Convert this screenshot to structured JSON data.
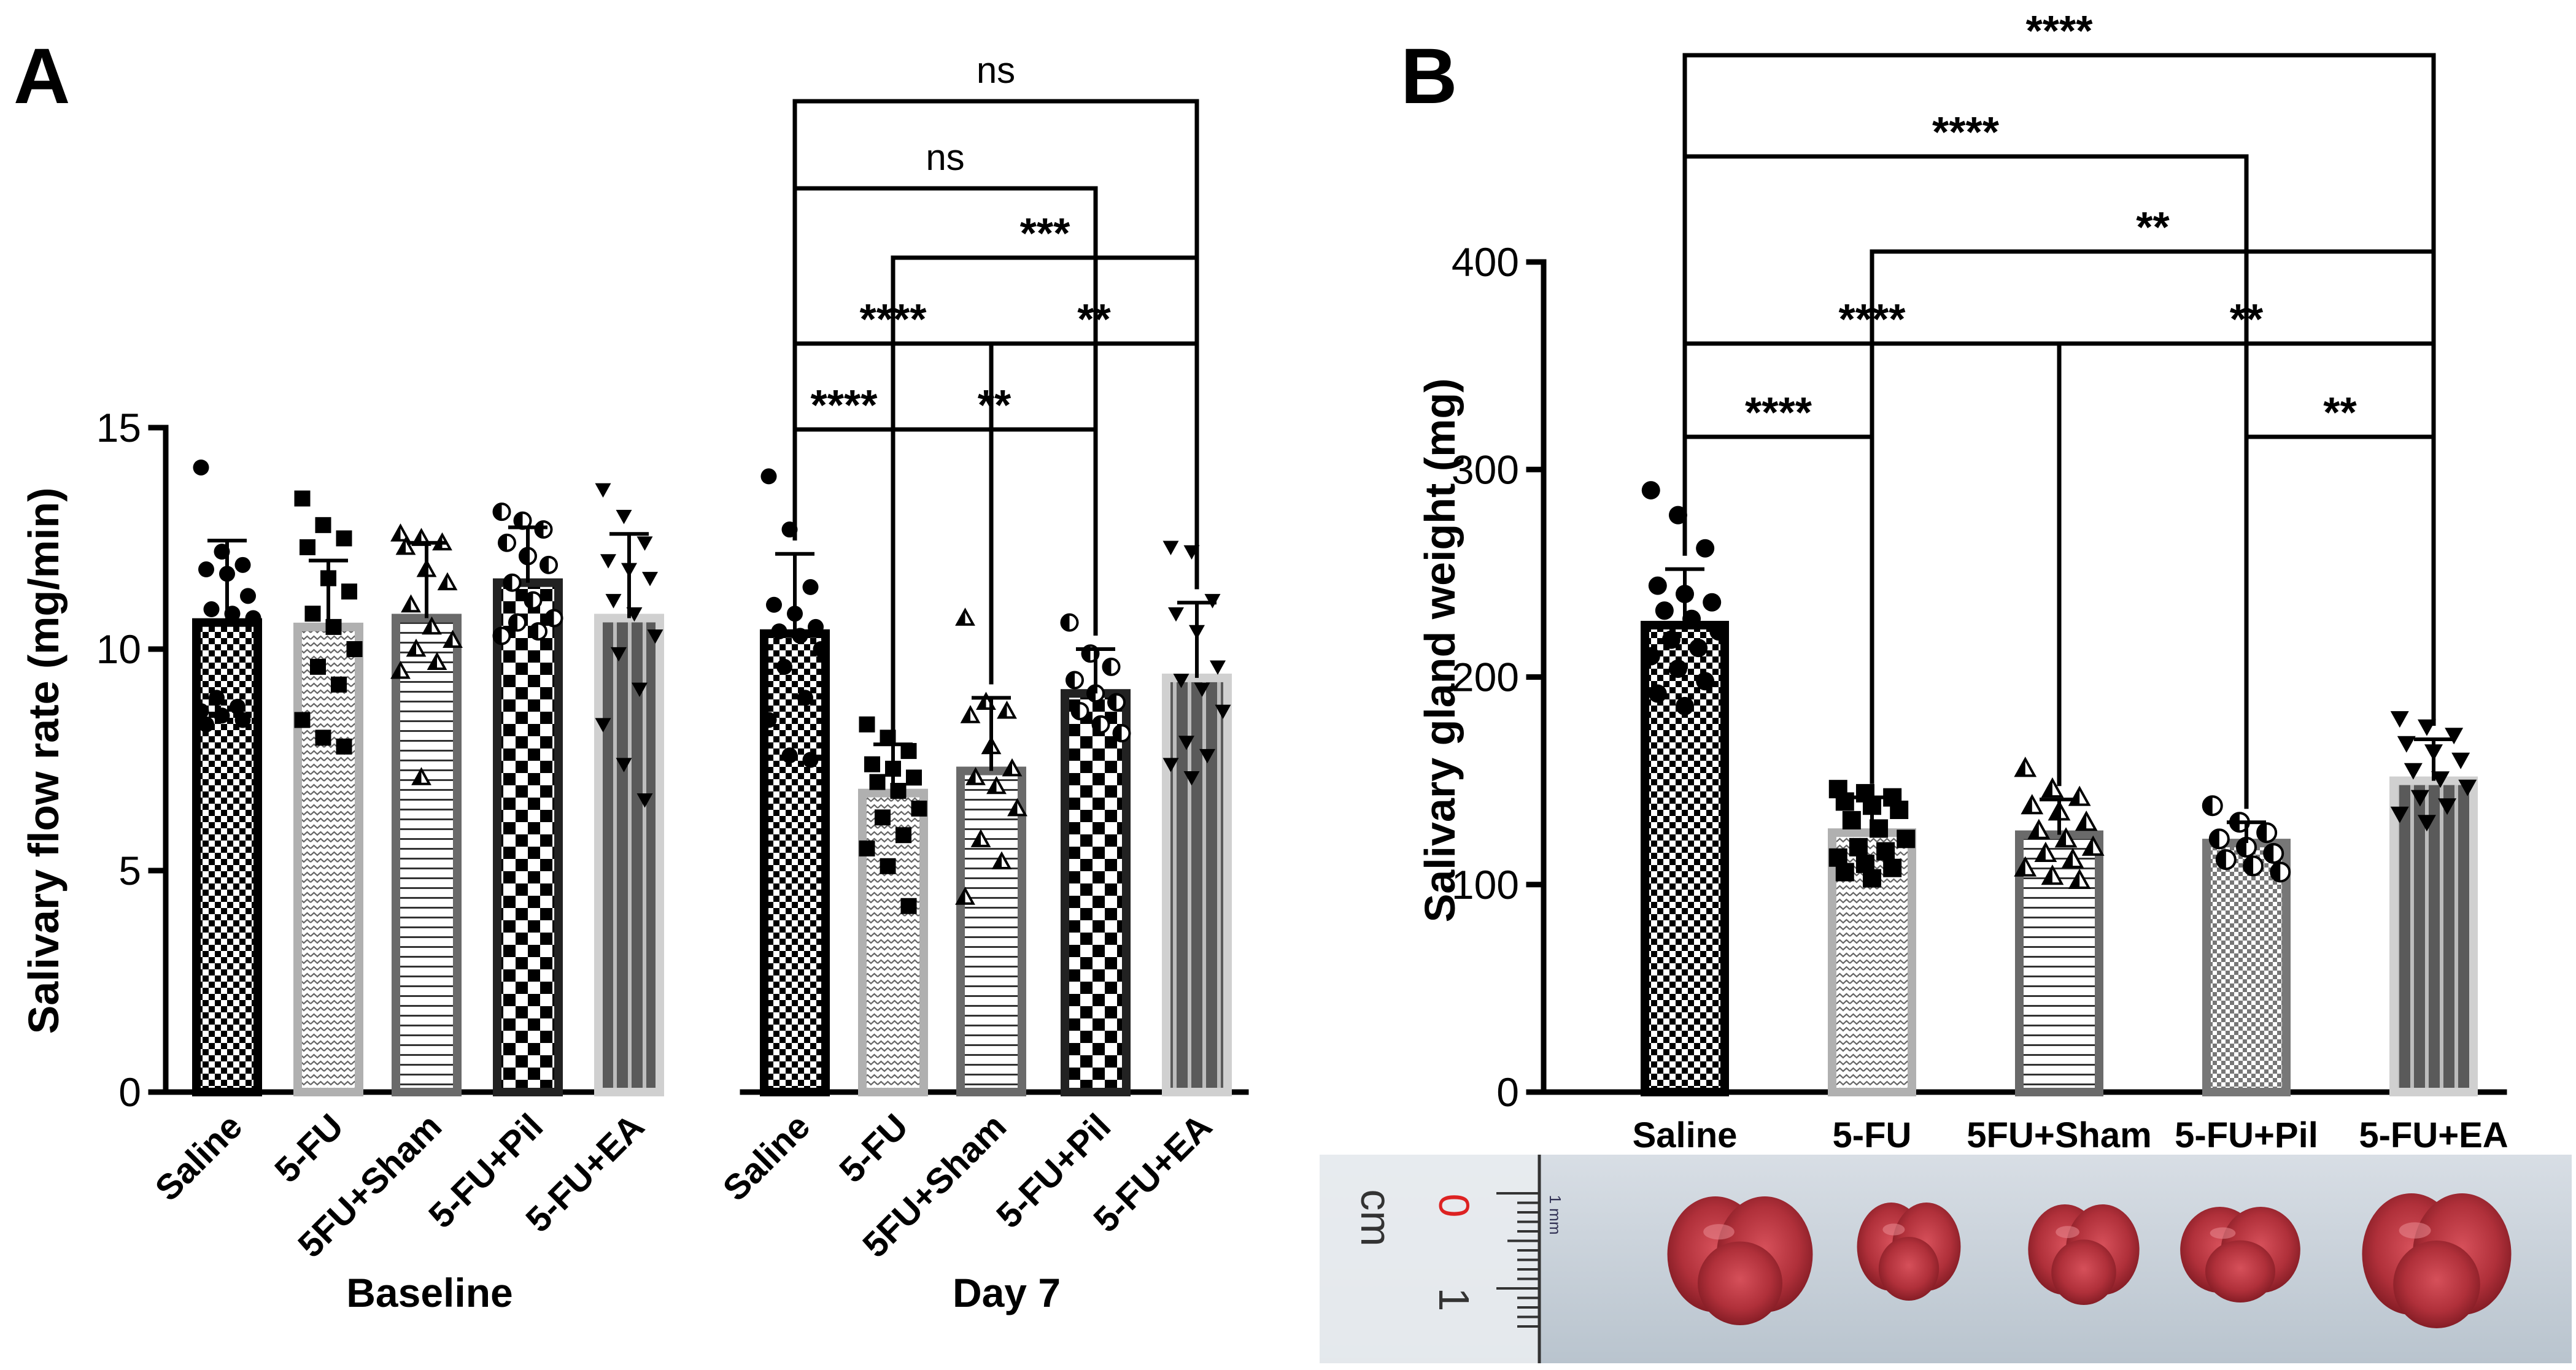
{
  "chart_data": [
    {
      "type": "bar",
      "panel": "A",
      "ylabel": "Salivary flow rate (mg/min)",
      "ylim": [
        0,
        15
      ],
      "yticks": [
        "0",
        "5",
        "10",
        "15"
      ],
      "groups": [
        {
          "name": "Baseline",
          "bars": [
            {
              "label": "Saline",
              "mean": 10.6,
              "sd": 1.85,
              "pattern": "checker",
              "marker": "circle",
              "points": [
                14.1,
                12.2,
                11.9,
                11.8,
                11.7,
                11.2,
                10.9,
                10.8,
                10.7,
                8.9,
                8.7,
                8.6,
                8.5,
                8.4,
                8.3
              ]
            },
            {
              "label": "5-FU",
              "mean": 10.5,
              "sd": 1.5,
              "pattern": "zigzag",
              "marker": "square",
              "points": [
                13.4,
                12.8,
                12.5,
                12.3,
                11.6,
                11.3,
                10.8,
                10.5,
                10.0,
                9.6,
                9.2,
                8.4,
                8.0,
                7.8
              ]
            },
            {
              "label": "5FU+Sham",
              "mean": 10.7,
              "sd": 1.7,
              "pattern": "hlines",
              "marker": "triangle",
              "points": [
                12.6,
                12.5,
                12.4,
                12.3,
                11.8,
                11.5,
                11.0,
                10.5,
                10.2,
                10.0,
                9.7,
                9.5,
                7.1
              ]
            },
            {
              "label": "5-FU+Pil",
              "mean": 11.5,
              "sd": 1.25,
              "pattern": "bigchecker",
              "marker": "halfcircle",
              "points": [
                13.1,
                12.9,
                12.7,
                12.4,
                12.1,
                11.9,
                11.5,
                11.1,
                10.7,
                10.6,
                10.4,
                10.3
              ]
            },
            {
              "label": "5-FU+EA",
              "mean": 10.7,
              "sd": 1.9,
              "pattern": "vlines",
              "marker": "invtriangle",
              "points": [
                13.6,
                13.0,
                12.4,
                12.0,
                11.8,
                11.6,
                11.1,
                10.8,
                10.3,
                9.9,
                9.1,
                8.3,
                7.4,
                6.6
              ]
            }
          ]
        },
        {
          "name": "Day 7",
          "bars": [
            {
              "label": "Saline",
              "mean": 10.35,
              "sd": 1.8,
              "pattern": "checker",
              "marker": "circle",
              "points": [
                13.9,
                12.7,
                11.4,
                11.0,
                10.8,
                10.5,
                10.4,
                10.3,
                10.0,
                9.6,
                8.9,
                8.4,
                7.6,
                7.5
              ]
            },
            {
              "label": "5-FU",
              "mean": 6.75,
              "sd": 1.1,
              "pattern": "zigzag",
              "marker": "square",
              "points": [
                8.3,
                8.0,
                7.7,
                7.4,
                7.3,
                7.1,
                7.0,
                6.8,
                6.4,
                6.2,
                5.8,
                5.5,
                5.1,
                4.2
              ]
            },
            {
              "label": "5FU+Sham",
              "mean": 7.25,
              "sd": 1.65,
              "pattern": "hlines",
              "marker": "triangle",
              "points": [
                10.7,
                8.8,
                8.6,
                8.5,
                7.8,
                7.3,
                7.1,
                6.9,
                6.4,
                5.7,
                5.2,
                4.4
              ]
            },
            {
              "label": "5-FU+Pil",
              "mean": 9.0,
              "sd": 1.0,
              "pattern": "bigchecker",
              "marker": "halfcircle",
              "points": [
                10.6,
                9.9,
                9.6,
                9.3,
                9.0,
                8.8,
                8.6,
                8.3,
                8.1
              ]
            },
            {
              "label": "5-FU+EA",
              "mean": 9.35,
              "sd": 1.7,
              "pattern": "vlines",
              "marker": "invtriangle",
              "points": [
                12.3,
                12.2,
                11.1,
                10.8,
                10.4,
                9.6,
                9.3,
                9.1,
                8.6,
                7.9,
                7.6,
                7.4,
                7.1
              ]
            }
          ]
        }
      ],
      "brackets": [
        {
          "from": "Day 7 Saline",
          "to": "Day 7 5-FU+EA",
          "label": "ns"
        },
        {
          "from": "Day 7 Saline",
          "to": "Day 7 5-FU+Pil",
          "label": "ns"
        },
        {
          "from": "Day 7 5-FU",
          "to": "Day 7 5-FU+EA",
          "label": "***"
        },
        {
          "from": "Day 7 Saline",
          "to": "Day 7 5FU+Sham",
          "label": "****"
        },
        {
          "from": "Day 7 5FU+Sham",
          "to": "Day 7 5-FU+EA",
          "label": "**"
        },
        {
          "from": "Day 7 Saline",
          "to": "Day 7 5-FU",
          "label": "****"
        },
        {
          "from": "Day 7 5-FU",
          "to": "Day 7 5-FU+Pil",
          "label": "**"
        }
      ]
    },
    {
      "type": "bar",
      "panel": "B",
      "ylabel": "Salivary gland weight (mg)",
      "ylim": [
        0,
        400
      ],
      "yticks": [
        "0",
        "100",
        "200",
        "300",
        "400"
      ],
      "bars": [
        {
          "label": "Saline",
          "mean": 225,
          "sd": 27,
          "pattern": "checker",
          "marker": "circle",
          "points": [
            290,
            278,
            262,
            244,
            240,
            236,
            232,
            228,
            222,
            218,
            214,
            210,
            204,
            198,
            192,
            186
          ]
        },
        {
          "label": "5-FU",
          "mean": 125,
          "sd": 17,
          "pattern": "zigzag",
          "marker": "square",
          "points": [
            146,
            144,
            142,
            140,
            138,
            136,
            131,
            127,
            122,
            118,
            116,
            113,
            110,
            108,
            106,
            103
          ]
        },
        {
          "label": "5FU+Sham",
          "mean": 124,
          "sd": 17,
          "pattern": "hlines",
          "marker": "triangle",
          "points": [
            156,
            146,
            142,
            138,
            135,
            130,
            126,
            122,
            118,
            115,
            112,
            108,
            104,
            102
          ]
        },
        {
          "label": "5-FU+Pil",
          "mean": 120,
          "sd": 10,
          "pattern": "smallchecker",
          "marker": "halfcircle",
          "points": [
            138,
            130,
            125,
            122,
            118,
            115,
            112,
            109,
            106
          ]
        },
        {
          "label": "5-FU+EA",
          "mean": 150,
          "sd": 20,
          "pattern": "vlines",
          "marker": "invtriangle",
          "points": [
            180,
            176,
            172,
            168,
            164,
            160,
            155,
            151,
            147,
            142,
            138,
            134,
            130
          ]
        }
      ],
      "brackets": [
        {
          "from": "Saline",
          "to": "5-FU+EA",
          "label": "****"
        },
        {
          "from": "Saline",
          "to": "5-FU+Pil",
          "label": "****"
        },
        {
          "from": "5-FU",
          "to": "5-FU+EA",
          "label": "**"
        },
        {
          "from": "Saline",
          "to": "5FU+Sham",
          "label": "****"
        },
        {
          "from": "5FU+Sham",
          "to": "5-FU+EA",
          "label": "**"
        },
        {
          "from": "Saline",
          "to": "5-FU",
          "label": "****"
        },
        {
          "from": "5-FU+Pil",
          "to": "5-FU+EA",
          "label": "**"
        }
      ]
    }
  ],
  "photo": {
    "ruler_unit": "cm",
    "ruler_marks": [
      "0",
      "1"
    ],
    "ruler_small_label": "1 mm",
    "gland_count": 5
  },
  "colors": {
    "saline_fill": "#1a1a1a",
    "fu_fill": "#c8c8c8",
    "sham_fill": "#777777",
    "pil_fill": "#111111",
    "ea_fill": "#444444",
    "tissue": "#b0303a",
    "photo_bg": "#c9d3dd"
  }
}
